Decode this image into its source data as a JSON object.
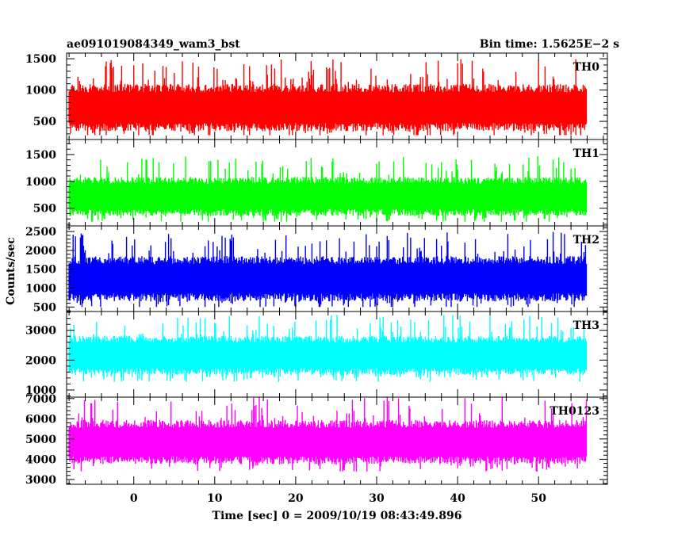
{
  "header": {
    "title": "ae091019084349_wam3_bst",
    "bin_time": "Bin time: 1.5625E−2 s"
  },
  "chart_data": {
    "type": "line",
    "title": "ae091019084349_wam3_bst",
    "subtitle": "Bin time: 1.5625E−2 s",
    "xlabel": "Time [sec] 0 = 2009/10/19 08:43:49.896",
    "ylabel": "Counts/sec",
    "xlim": [
      -8.3,
      58.5
    ],
    "x_range": [
      -8.0,
      56.0
    ],
    "xticks": [
      0,
      10,
      20,
      30,
      40,
      50
    ],
    "xticklabels": [
      "0",
      "10",
      "20",
      "30",
      "40",
      "50"
    ],
    "bin_time": 0.015625,
    "grid": false,
    "legend": "none",
    "series": [
      {
        "name": "TH0",
        "color": "#ff0000",
        "ylim": [
          210,
          1590
        ],
        "yticks": [
          500,
          1000,
          1500
        ],
        "mean": 720,
        "spread": 270,
        "min": 280,
        "max": 1590
      },
      {
        "name": "TH1",
        "color": "#00ff00",
        "ylim": [
          170,
          1780
        ],
        "yticks": [
          500,
          1000,
          1500
        ],
        "mean": 720,
        "spread": 260,
        "min": 250,
        "max": 1780
      },
      {
        "name": "TH2",
        "color": "#0000ff",
        "ylim": [
          380,
          2650
        ],
        "yticks": [
          500,
          1000,
          1500,
          2000,
          2500
        ],
        "mean": 1250,
        "spread": 430,
        "min": 500,
        "max": 2650
      },
      {
        "name": "TH3",
        "color": "#00ffff",
        "ylim": [
          760,
          3630
        ],
        "yticks": [
          1000,
          2000,
          3000
        ],
        "mean": 2160,
        "spread": 470,
        "min": 1050,
        "max": 3630
      },
      {
        "name": "TH0123",
        "color": "#ff00ff",
        "ylim": [
          2760,
          7070
        ],
        "yticks": [
          3000,
          4000,
          5000,
          6000,
          7000
        ],
        "mean": 4850,
        "spread": 780,
        "min": 3200,
        "max": 7070
      }
    ]
  }
}
